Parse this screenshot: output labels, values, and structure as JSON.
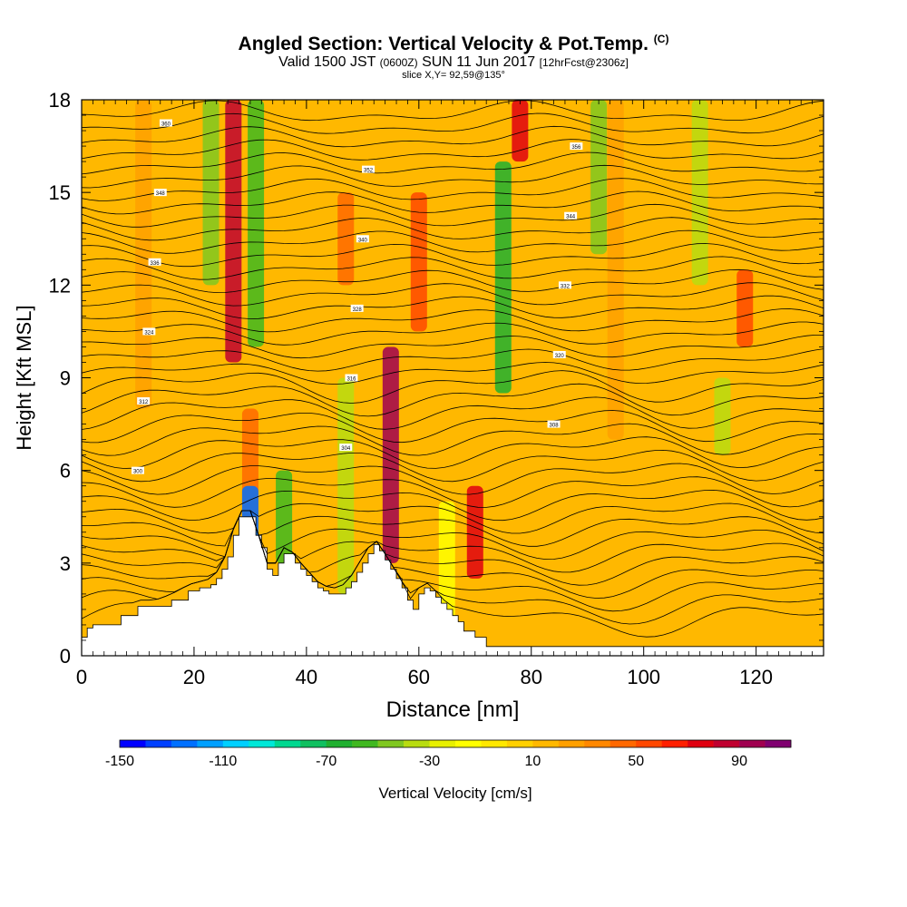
{
  "header": {
    "title": "Angled Section: Vertical Velocity & Pot.Temp.",
    "title_tag": "(C)",
    "valid_prefix": "Valid 1500 JST",
    "valid_small": "(0600Z)",
    "valid_date": "SUN 11 Jun 2017",
    "forecast": "[12hrFcst@2306z]",
    "slice": "slice X,Y= 92,59@135°"
  },
  "chart_data": {
    "type": "heatmap",
    "xlabel": "Distance [nm]",
    "ylabel": "Height [Kft MSL]",
    "xlim": [
      0,
      132
    ],
    "ylim": [
      0,
      18
    ],
    "x_ticks": [
      0,
      20,
      40,
      60,
      80,
      100,
      120
    ],
    "y_ticks": [
      0,
      3,
      6,
      9,
      12,
      15,
      18
    ],
    "colorbar": {
      "label": "Vertical Velocity [cm/s]",
      "min": -150,
      "max": 110,
      "step": 10,
      "tick_labels": [
        "-150",
        "-110",
        "-70",
        "-30",
        "10",
        "50",
        "90"
      ],
      "colors": [
        "#0000ff",
        "#0040ff",
        "#0070ff",
        "#00a0ff",
        "#00d0ff",
        "#00e8d8",
        "#00d890",
        "#10c060",
        "#20b030",
        "#40b820",
        "#80c820",
        "#b8dc10",
        "#e8f000",
        "#ffff00",
        "#ffe800",
        "#ffd000",
        "#ffb800",
        "#ffa000",
        "#ff8800",
        "#ff6800",
        "#ff4800",
        "#ff2000",
        "#e00010",
        "#c00030",
        "#a00050",
        "#800070"
      ]
    },
    "background_value": 10,
    "updraft_columns": [
      {
        "x": 27,
        "bottom": 9.5,
        "top": 18,
        "value": 80
      },
      {
        "x": 30,
        "bottom": 4,
        "top": 8,
        "value": 40
      },
      {
        "x": 55,
        "bottom": 3,
        "top": 10,
        "value": 90
      },
      {
        "x": 60,
        "bottom": 10.5,
        "top": 15,
        "value": 55
      },
      {
        "x": 70,
        "bottom": 2.5,
        "top": 5.5,
        "value": 75
      },
      {
        "x": 78,
        "bottom": 16,
        "top": 18,
        "value": 70
      },
      {
        "x": 47,
        "bottom": 12,
        "top": 15,
        "value": 45
      },
      {
        "x": 118,
        "bottom": 10,
        "top": 12.5,
        "value": 55
      },
      {
        "x": 11,
        "bottom": 8,
        "top": 18,
        "value": 25
      },
      {
        "x": 95,
        "bottom": 7,
        "top": 18,
        "value": 25
      }
    ],
    "downdraft_columns": [
      {
        "x": 23,
        "bottom": 12,
        "top": 18,
        "value": -50
      },
      {
        "x": 31,
        "bottom": 10,
        "top": 18,
        "value": -60
      },
      {
        "x": 30,
        "bottom": 3.7,
        "top": 5.5,
        "value": -130
      },
      {
        "x": 36,
        "bottom": 3,
        "top": 6,
        "value": -55
      },
      {
        "x": 47,
        "bottom": 2,
        "top": 9,
        "value": -35
      },
      {
        "x": 75,
        "bottom": 8.5,
        "top": 16,
        "value": -70
      },
      {
        "x": 92,
        "bottom": 13,
        "top": 18,
        "value": -50
      },
      {
        "x": 110,
        "bottom": 12,
        "top": 18,
        "value": -40
      },
      {
        "x": 114,
        "bottom": 6.5,
        "top": 9,
        "value": -40
      },
      {
        "x": 65,
        "bottom": 1,
        "top": 5,
        "value": -20
      }
    ],
    "terrain_profile": {
      "x": [
        0,
        1,
        2,
        7,
        10,
        13,
        16,
        19,
        21,
        23,
        24,
        25,
        26,
        27,
        28,
        29,
        30,
        31,
        32,
        33,
        34,
        35,
        36,
        37,
        38,
        39,
        40,
        41,
        42,
        43,
        44,
        45,
        46,
        47,
        48,
        49,
        50,
        51,
        52,
        53,
        54,
        55,
        56,
        57,
        58,
        59,
        60,
        61,
        62,
        63,
        64,
        65,
        66,
        67,
        68,
        70,
        72,
        75,
        80,
        100,
        132
      ],
      "height": [
        0.6,
        0.9,
        1.0,
        1.3,
        1.6,
        1.6,
        1.8,
        2.1,
        2.2,
        2.3,
        2.5,
        2.8,
        3.2,
        3.9,
        4.5,
        4.5,
        4.5,
        3.9,
        3.5,
        2.8,
        2.6,
        3.0,
        3.3,
        3.3,
        3.0,
        2.8,
        2.6,
        2.4,
        2.2,
        2.1,
        2.0,
        2.0,
        2.0,
        2.2,
        2.4,
        2.7,
        3.0,
        3.3,
        3.6,
        3.4,
        3.1,
        2.8,
        2.5,
        2.2,
        1.8,
        1.5,
        2.0,
        2.2,
        2.1,
        1.9,
        1.7,
        1.5,
        1.3,
        1.1,
        0.8,
        0.6,
        0.3,
        0.3,
        0.3,
        0.3,
        0.3
      ]
    },
    "isentropes": {
      "count": 40,
      "spacing_kft": 0.42,
      "inline_labels": [
        "300",
        "304",
        "308",
        "312",
        "316",
        "320",
        "324",
        "328",
        "332",
        "336",
        "340",
        "344",
        "348",
        "352",
        "356",
        "360"
      ]
    }
  }
}
